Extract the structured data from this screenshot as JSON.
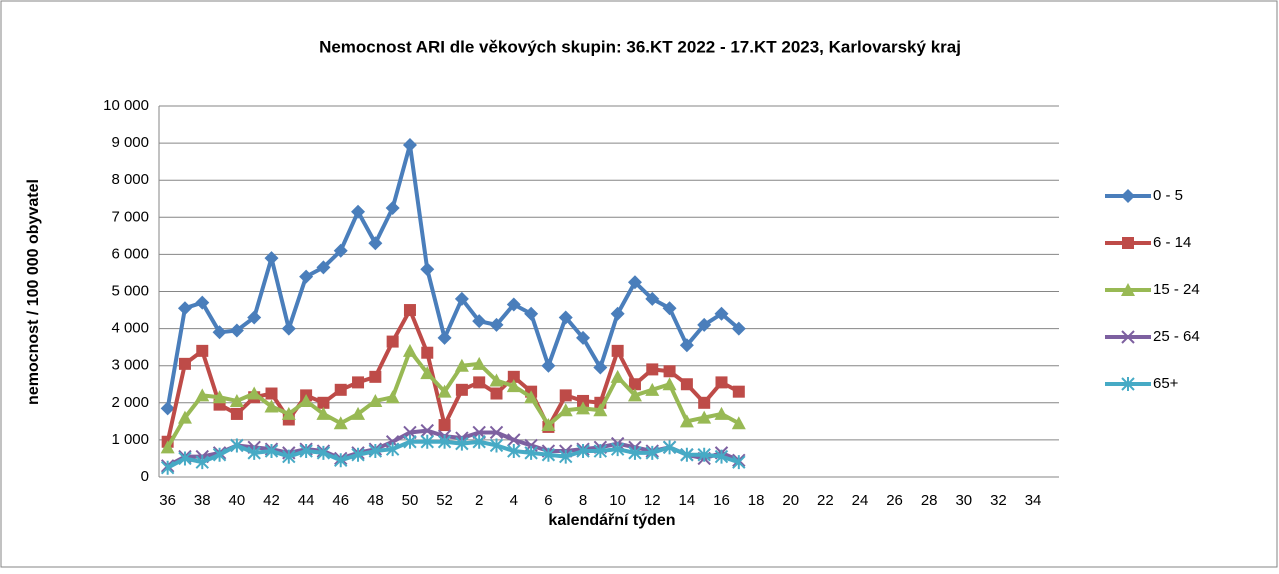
{
  "chart_data": {
    "type": "line",
    "title": "Nemocnost ARI dle věkových skupin: 36.KT 2022 - 17.KT 2023, Karlovarský kraj",
    "x_label": "kalendářní týden",
    "y_label": "nemocnost / 100 000 obyvatel",
    "categories": [
      "36",
      null,
      "38",
      null,
      "40",
      null,
      "42",
      null,
      "44",
      null,
      "46",
      null,
      "48",
      null,
      "50",
      null,
      "52",
      null,
      "2",
      null,
      "4",
      null,
      "6",
      null,
      "8",
      null,
      "10",
      null,
      "12",
      null,
      "14",
      null,
      "16",
      null,
      "18",
      null,
      "20",
      null,
      "22",
      null,
      "24",
      null,
      "26",
      null,
      "28",
      null,
      "30",
      null,
      "32",
      null,
      "34",
      null
    ],
    "ylim": [
      0,
      10000
    ],
    "yticks": [
      0,
      {
        "value": 1000,
        "label": "1 000"
      },
      {
        "value": 2000,
        "label": "2 000"
      },
      {
        "value": 3000,
        "label": "3 000"
      },
      {
        "value": 4000,
        "label": "4 000"
      },
      {
        "value": 5000,
        "label": "5 000"
      },
      {
        "value": 6000,
        "label": "6 000"
      },
      {
        "value": 7000,
        "label": "7 000"
      },
      {
        "value": 8000,
        "label": "8 000"
      },
      {
        "value": 9000,
        "label": "9 000"
      },
      {
        "value": 10000,
        "label": "10 000"
      }
    ],
    "grid": true,
    "legend": "right",
    "series": [
      {
        "name": "0 - 5",
        "color": "#4a7ebb",
        "marker": "diamond",
        "values": [
          1850,
          4550,
          4700,
          3900,
          3950,
          4300,
          5900,
          4000,
          5400,
          5650,
          6100,
          7150,
          6300,
          7250,
          8950,
          5600,
          3750,
          4800,
          4200,
          4100,
          4650,
          4400,
          3000,
          4300,
          3750,
          2950,
          4400,
          5250,
          4800,
          4550,
          3550,
          4100,
          4400,
          4000,
          null,
          null,
          null,
          null,
          null,
          null,
          null,
          null,
          null,
          null,
          null,
          null,
          null,
          null,
          null,
          null,
          null,
          null
        ]
      },
      {
        "name": "6 - 14",
        "color": "#be4b48",
        "marker": "square",
        "values": [
          950,
          3050,
          3400,
          1950,
          1700,
          2150,
          2250,
          1550,
          2200,
          2000,
          2350,
          2550,
          2700,
          3650,
          4500,
          3350,
          1400,
          2350,
          2550,
          2250,
          2700,
          2300,
          1350,
          2200,
          2050,
          2000,
          3400,
          2500,
          2900,
          2850,
          2500,
          2000,
          2550,
          2300,
          null,
          null,
          null,
          null,
          null,
          null,
          null,
          null,
          null,
          null,
          null,
          null,
          null,
          null,
          null,
          null,
          null,
          null
        ]
      },
      {
        "name": "15 - 24",
        "color": "#98b954",
        "marker": "triangle",
        "values": [
          800,
          1600,
          2200,
          2150,
          2050,
          2250,
          1900,
          1700,
          2050,
          1700,
          1450,
          1700,
          2050,
          2150,
          3400,
          2800,
          2300,
          3000,
          3050,
          2600,
          2450,
          2150,
          1400,
          1800,
          1850,
          1800,
          2700,
          2200,
          2350,
          2500,
          1500,
          1600,
          1700,
          1450,
          null,
          null,
          null,
          null,
          null,
          null,
          null,
          null,
          null,
          null,
          null,
          null,
          null,
          null,
          null,
          null,
          null,
          null
        ]
      },
      {
        "name": "25 - 64",
        "color": "#7d60a0",
        "marker": "x",
        "values": [
          300,
          550,
          550,
          650,
          850,
          800,
          750,
          650,
          750,
          700,
          500,
          650,
          750,
          950,
          1200,
          1250,
          1100,
          1050,
          1200,
          1200,
          1000,
          850,
          700,
          700,
          750,
          800,
          900,
          800,
          700,
          800,
          600,
          500,
          650,
          450,
          null,
          null,
          null,
          null,
          null,
          null,
          null,
          null,
          null,
          null,
          null,
          null,
          null,
          null,
          null,
          null,
          null,
          null
        ]
      },
      {
        "name": "65+",
        "color": "#46aac5",
        "marker": "star",
        "values": [
          250,
          500,
          400,
          600,
          850,
          650,
          700,
          550,
          700,
          650,
          450,
          600,
          700,
          750,
          950,
          950,
          950,
          900,
          950,
          850,
          700,
          650,
          600,
          550,
          700,
          700,
          750,
          650,
          650,
          800,
          600,
          600,
          550,
          400,
          null,
          null,
          null,
          null,
          null,
          null,
          null,
          null,
          null,
          null,
          null,
          null,
          null,
          null,
          null,
          null,
          null,
          null
        ]
      }
    ]
  }
}
